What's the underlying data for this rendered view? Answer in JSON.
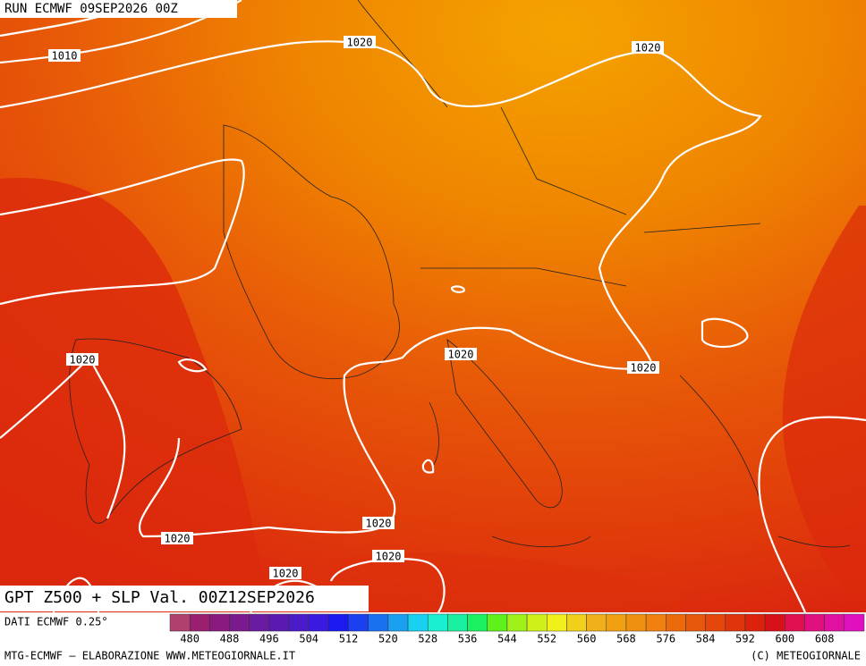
{
  "header": {
    "run": "RUN ECMWF 09SEP2026 00Z"
  },
  "title": "GPT Z500 + SLP Val. 00Z12SEP2026",
  "isobar_labels": [
    "1010",
    "1020",
    "1020",
    "1020",
    "1020",
    "1020",
    "1020",
    "1020",
    "1020",
    "1020"
  ],
  "colorbar": {
    "labels": [
      480,
      488,
      496,
      504,
      512,
      520,
      528,
      536,
      544,
      552,
      560,
      568,
      576,
      584,
      592,
      600,
      608
    ],
    "colors": [
      "#b0406e",
      "#9a1f6e",
      "#8a1a7e",
      "#7a1a8e",
      "#6a1a9e",
      "#5a1ab0",
      "#4a1ac8",
      "#3a1ae0",
      "#1a1af0",
      "#1a40f0",
      "#1a70f0",
      "#1aa0f0",
      "#1ad0f0",
      "#1af0d0",
      "#1af0a0",
      "#1af060",
      "#60f01a",
      "#a0f01a",
      "#d0f01a",
      "#f0f01a",
      "#f0d01a",
      "#f0b01a",
      "#f0a010",
      "#f09010",
      "#f08010",
      "#ec6a0c",
      "#e8580c",
      "#e4460c",
      "#e0340c",
      "#dc220c",
      "#d81018",
      "#e01050",
      "#e01080",
      "#e010a0",
      "#e010c0"
    ]
  },
  "footer": {
    "source": "DATI ECMWF 0.25°",
    "credit": "MTG-ECMWF – ELABORAZIONE WWW.METEOGIORNALE.IT",
    "copyright": "(C) METEOGIORNALE"
  }
}
